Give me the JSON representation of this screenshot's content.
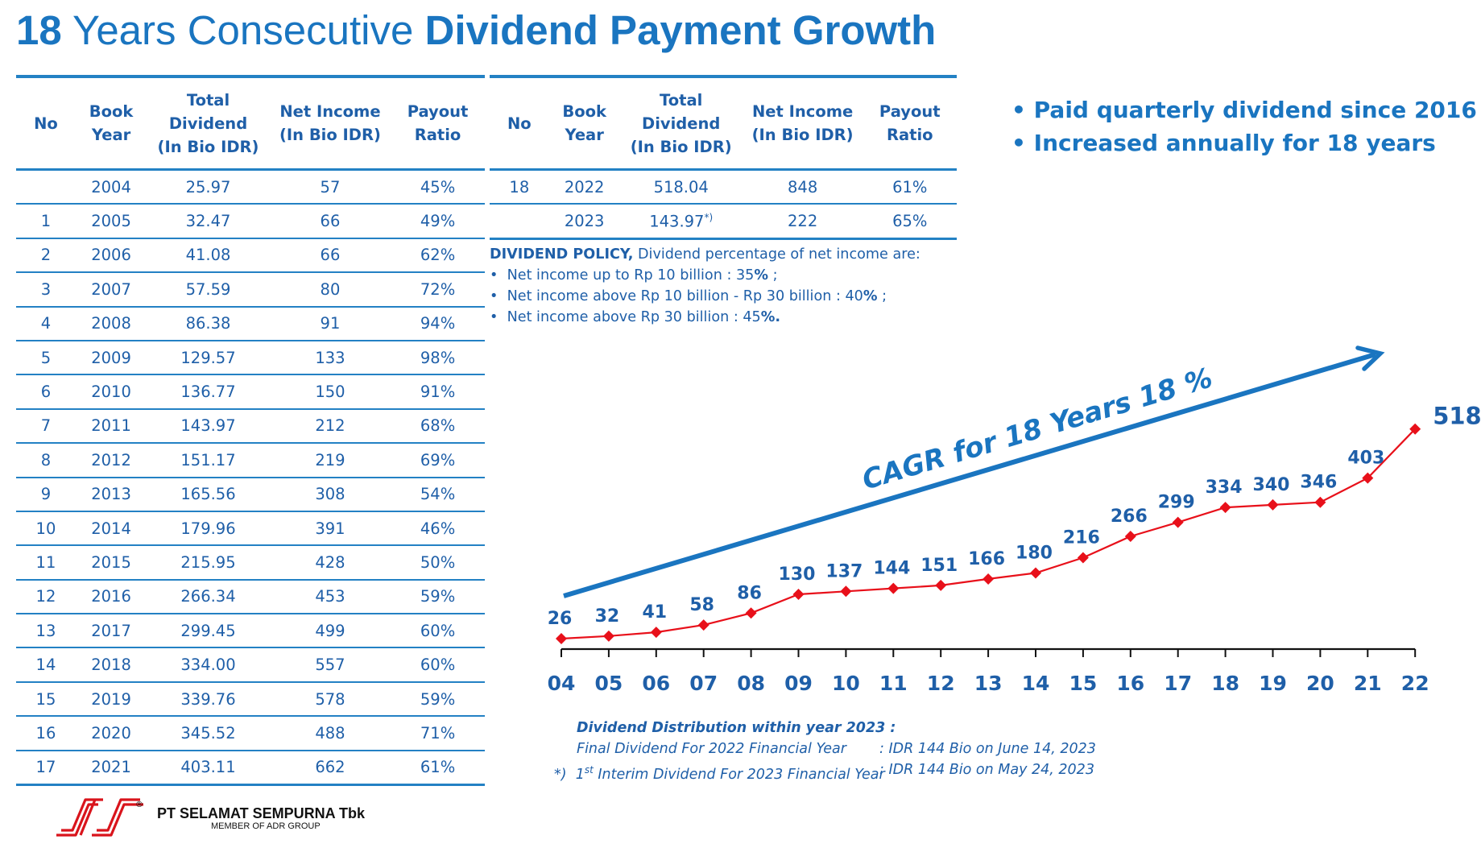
{
  "title": {
    "num": "18",
    "mid": " Years Consecutive ",
    "bold": "Dividend Payment Growth"
  },
  "table": {
    "headers": [
      {
        "l1": "No",
        "l2": "",
        "l3": ""
      },
      {
        "l1": "Book",
        "l2": "Year",
        "l3": ""
      },
      {
        "l1": "Total",
        "l2": "Dividend",
        "l3": "(In Bio IDR)"
      },
      {
        "l1": "Net Income",
        "l2": "(In Bio IDR)",
        "l3": ""
      },
      {
        "l1": "Payout",
        "l2": "Ratio",
        "l3": ""
      }
    ],
    "left_rows": [
      [
        "",
        "2004",
        "25.97",
        "57",
        "45%"
      ],
      [
        "1",
        "2005",
        "32.47",
        "66",
        "49%"
      ],
      [
        "2",
        "2006",
        "41.08",
        "66",
        "62%"
      ],
      [
        "3",
        "2007",
        "57.59",
        "80",
        "72%"
      ],
      [
        "4",
        "2008",
        "86.38",
        "91",
        "94%"
      ],
      [
        "5",
        "2009",
        "129.57",
        "133",
        "98%"
      ],
      [
        "6",
        "2010",
        "136.77",
        "150",
        "91%"
      ],
      [
        "7",
        "2011",
        "143.97",
        "212",
        "68%"
      ],
      [
        "8",
        "2012",
        "151.17",
        "219",
        "69%"
      ],
      [
        "9",
        "2013",
        "165.56",
        "308",
        "54%"
      ],
      [
        "10",
        "2014",
        "179.96",
        "391",
        "46%"
      ],
      [
        "11",
        "2015",
        "215.95",
        "428",
        "50%"
      ],
      [
        "12",
        "2016",
        "266.34",
        "453",
        "59%"
      ],
      [
        "13",
        "2017",
        "299.45",
        "499",
        "60%"
      ],
      [
        "14",
        "2018",
        "334.00",
        "557",
        "60%"
      ],
      [
        "15",
        "2019",
        "339.76",
        "578",
        "59%"
      ],
      [
        "16",
        "2020",
        "345.52",
        "488",
        "71%"
      ],
      [
        "17",
        "2021",
        "403.11",
        "662",
        "61%"
      ]
    ],
    "right_rows": [
      [
        "18",
        "2022",
        "518.04",
        "848",
        "61%"
      ],
      [
        "",
        "2023",
        "143.97",
        "222",
        "65%"
      ]
    ],
    "right_note_mark": "*)"
  },
  "policy": {
    "head_bold": "DIVIDEND POLICY,",
    "head_rest": " Dividend percentage of net income are:",
    "items": [
      {
        "text": "Net income up to Rp 10 billion : 35",
        "pct": "%",
        "end": " ;"
      },
      {
        "text": "Net income above Rp 10 billion - Rp 30 billion : 40",
        "pct": "%",
        "end": " ;"
      },
      {
        "text": "Net income above Rp 30 billion : 45",
        "pct": "%.",
        "end": ""
      }
    ],
    "bullet": "•"
  },
  "highlights": {
    "bullet": "•",
    "items": [
      "Paid quarterly dividend since 2016",
      "Increased annually for 18 years"
    ]
  },
  "chart_data": {
    "type": "line",
    "categories": [
      "04",
      "05",
      "06",
      "07",
      "08",
      "09",
      "10",
      "11",
      "12",
      "13",
      "14",
      "15",
      "16",
      "17",
      "18",
      "19",
      "20",
      "21",
      "22"
    ],
    "values": [
      26,
      32,
      41,
      58,
      86,
      130,
      137,
      144,
      151,
      166,
      180,
      216,
      266,
      299,
      334,
      340,
      346,
      403,
      518
    ],
    "labels": [
      "26",
      "32",
      "41",
      "58",
      "86",
      "130",
      "137",
      "144",
      "151",
      "166",
      "180",
      "216",
      "266",
      "299",
      "334",
      "340",
      "346",
      "403",
      "518"
    ],
    "annotation": "CAGR for 18 Years 18 %",
    "line_color": "#e8101a",
    "label_color": "#1f5fa8",
    "arrow_color": "#1a75c0",
    "grid": false
  },
  "distribution": {
    "head": "Dividend Distribution within year 2023 :",
    "row1_key": "Final Dividend For 2022 Financial Year",
    "row1_val": ": IDR 144 Bio on June 14, 2023",
    "row2_mark": "*)",
    "row2_key_pre": "1",
    "row2_key_sup": "st",
    "row2_key_post": " Interim Dividend For 2023 Financial Year",
    "row2_val": ": IDR 144 Bio on May 24, 2023"
  },
  "company": {
    "name": "PT SELAMAT SEMPURNA Tbk",
    "member": "MEMBER OF ADR GROUP",
    "reg": "®"
  }
}
